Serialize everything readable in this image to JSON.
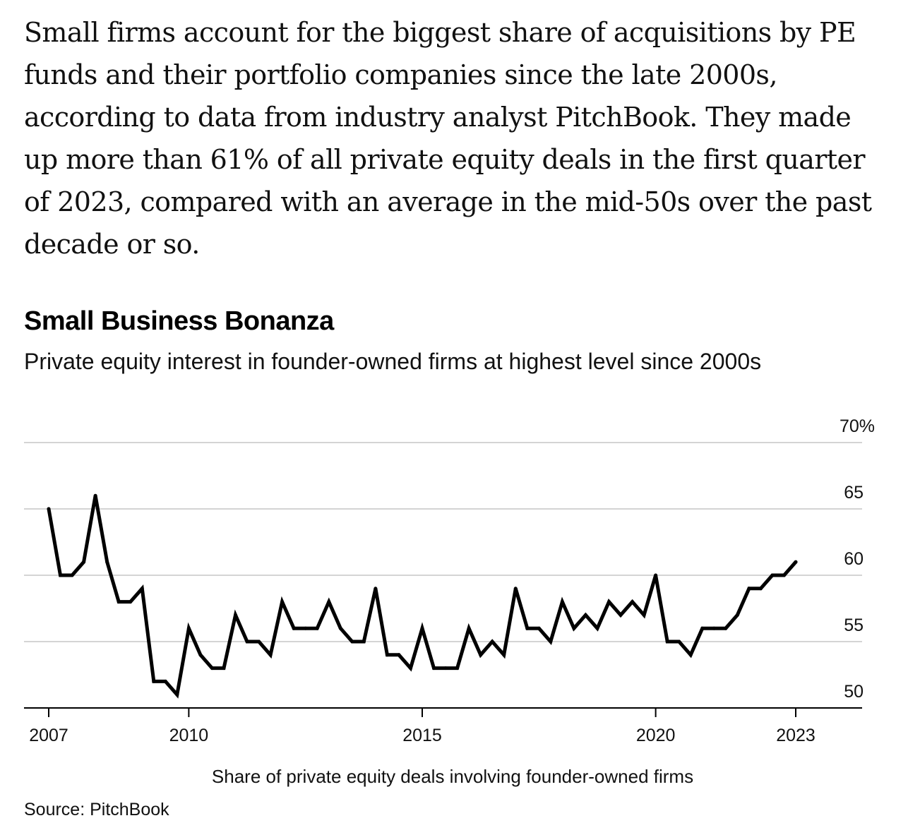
{
  "article": {
    "paragraph": "Small firms account for the biggest share of acquisitions by PE funds and their portfolio companies since the late 2000s, according to data from industry analyst PitchBook. They made up more than 61% of all private equity deals in the first quarter of 2023, compared with an average in the mid-50s over the past decade or so."
  },
  "chart_data": {
    "type": "line",
    "title": "Small Business Bonanza",
    "subtitle": "Private equity interest in founder-owned firms at highest level since 2000s",
    "xlabel": "Share of private equity deals involving founder-owned firms",
    "ylabel": "",
    "source": "Source: PitchBook",
    "ylim": [
      50,
      70
    ],
    "xlim": [
      2006.75,
      2024.25
    ],
    "y_ticks": [
      {
        "value": 50,
        "label": "50"
      },
      {
        "value": 55,
        "label": "55"
      },
      {
        "value": 60,
        "label": "60"
      },
      {
        "value": 65,
        "label": "65"
      },
      {
        "value": 70,
        "label": "70%"
      }
    ],
    "x_ticks": [
      {
        "value": 2007,
        "label": "2007"
      },
      {
        "value": 2010,
        "label": "2010"
      },
      {
        "value": 2015,
        "label": "2015"
      },
      {
        "value": 2020,
        "label": "2020"
      },
      {
        "value": 2023,
        "label": "2023"
      }
    ],
    "grid": true,
    "series": [
      {
        "name": "",
        "color": "#000000",
        "x": [
          2007.0,
          2007.25,
          2007.5,
          2007.75,
          2008.0,
          2008.25,
          2008.5,
          2008.75,
          2009.0,
          2009.25,
          2009.5,
          2009.75,
          2010.0,
          2010.25,
          2010.5,
          2010.75,
          2011.0,
          2011.25,
          2011.5,
          2011.75,
          2012.0,
          2012.25,
          2012.5,
          2012.75,
          2013.0,
          2013.25,
          2013.5,
          2013.75,
          2014.0,
          2014.25,
          2014.5,
          2014.75,
          2015.0,
          2015.25,
          2015.5,
          2015.75,
          2016.0,
          2016.25,
          2016.5,
          2016.75,
          2017.0,
          2017.25,
          2017.5,
          2017.75,
          2018.0,
          2018.25,
          2018.5,
          2018.75,
          2019.0,
          2019.25,
          2019.5,
          2019.75,
          2020.0,
          2020.25,
          2020.5,
          2020.75,
          2021.0,
          2021.25,
          2021.5,
          2021.75,
          2022.0,
          2022.25,
          2022.5,
          2022.75,
          2023.0
        ],
        "values": [
          65,
          60,
          60,
          61,
          66,
          61,
          58,
          58,
          59,
          52,
          52,
          51,
          56,
          54,
          53,
          53,
          57,
          55,
          55,
          54,
          58,
          56,
          56,
          56,
          58,
          56,
          55,
          55,
          59,
          54,
          54,
          53,
          56,
          53,
          53,
          53,
          56,
          54,
          55,
          54,
          59,
          56,
          56,
          55,
          58,
          56,
          57,
          56,
          58,
          57,
          58,
          57,
          60,
          55,
          55,
          54,
          56,
          56,
          56,
          57,
          59,
          59,
          60,
          60,
          61
        ]
      }
    ]
  }
}
